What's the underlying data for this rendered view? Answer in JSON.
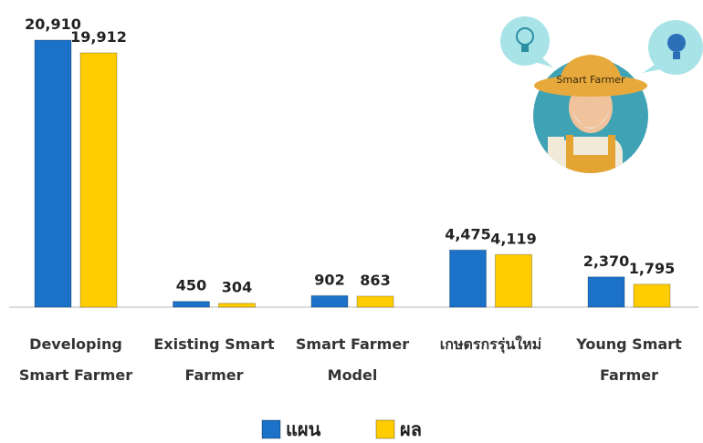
{
  "chart_data": {
    "type": "bar",
    "categories": [
      "Developing Smart Farmer",
      "Existing Smart Farmer",
      "Smart Farmer Model",
      "เกษตรกรรุ่นใหม่",
      "Young Smart Farmer"
    ],
    "series": [
      {
        "name": "แผน",
        "color": "#1b72c8",
        "values": [
          20910,
          450,
          902,
          4475,
          2370
        ],
        "value_labels": [
          "20,910",
          "450",
          "902",
          "4,475",
          "2,370"
        ]
      },
      {
        "name": "ผล",
        "color": "#ffcc00",
        "values": [
          19912,
          304,
          863,
          4119,
          1795
        ],
        "value_labels": [
          "19,912",
          "304",
          "863",
          "4,119",
          "1,795"
        ]
      }
    ],
    "legend": "bottom",
    "grid": false,
    "annotations": [
      "Smart Farmer"
    ]
  }
}
